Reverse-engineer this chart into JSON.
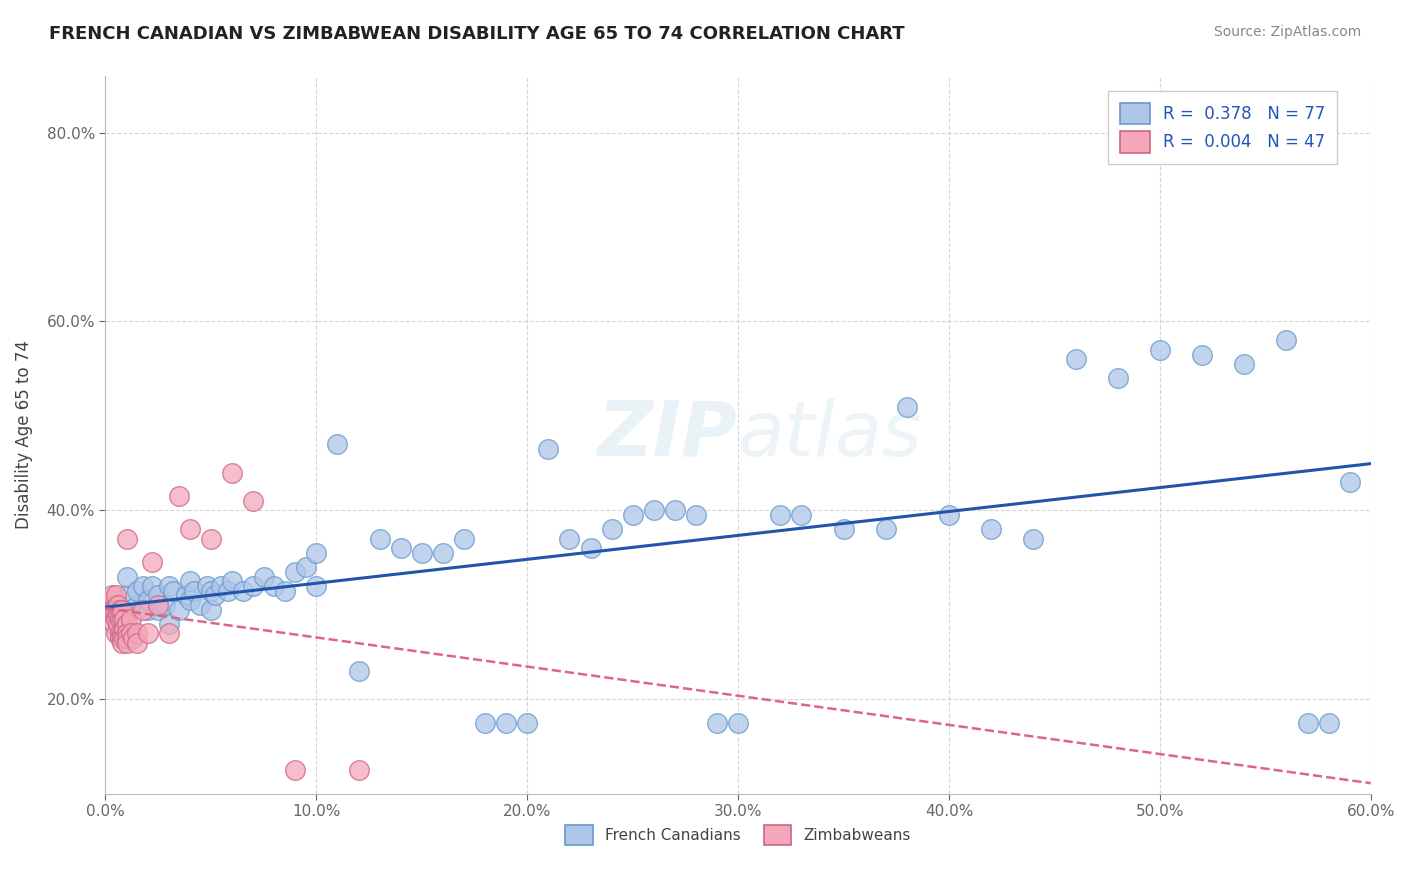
{
  "title": "FRENCH CANADIAN VS ZIMBABWEAN DISABILITY AGE 65 TO 74 CORRELATION CHART",
  "source": "Source: ZipAtlas.com",
  "ylabel": "Disability Age 65 to 74",
  "xlim": [
    0.0,
    0.6
  ],
  "ylim": [
    0.1,
    0.86
  ],
  "xticks": [
    0.0,
    0.1,
    0.2,
    0.3,
    0.4,
    0.5,
    0.6
  ],
  "yticks": [
    0.2,
    0.4,
    0.6,
    0.8
  ],
  "ytick_labels": [
    "20.0%",
    "40.0%",
    "60.0%",
    "80.0%"
  ],
  "xtick_labels": [
    "0.0%",
    "10.0%",
    "20.0%",
    "30.0%",
    "40.0%",
    "50.0%",
    "60.0%"
  ],
  "legend_R1": "0.378",
  "legend_N1": "77",
  "legend_R2": "0.004",
  "legend_N2": "47",
  "legend_label1": "French Canadians",
  "legend_label2": "Zimbabweans",
  "blue_color": "#aec6e8",
  "blue_edge": "#6699cc",
  "pink_color": "#f4a7b9",
  "pink_edge": "#cc6688",
  "trend_blue": "#2255aa",
  "trend_pink": "#dd6688",
  "background": "#ffffff",
  "grid_color": "#cccccc",
  "blue_x": [
    0.005,
    0.008,
    0.01,
    0.01,
    0.01,
    0.012,
    0.015,
    0.015,
    0.018,
    0.02,
    0.02,
    0.022,
    0.025,
    0.025,
    0.028,
    0.03,
    0.03,
    0.032,
    0.035,
    0.038,
    0.04,
    0.04,
    0.042,
    0.045,
    0.048,
    0.05,
    0.05,
    0.052,
    0.055,
    0.058,
    0.06,
    0.065,
    0.07,
    0.075,
    0.08,
    0.085,
    0.09,
    0.095,
    0.1,
    0.1,
    0.11,
    0.12,
    0.13,
    0.14,
    0.15,
    0.16,
    0.17,
    0.18,
    0.19,
    0.2,
    0.21,
    0.22,
    0.23,
    0.24,
    0.25,
    0.26,
    0.27,
    0.28,
    0.29,
    0.3,
    0.32,
    0.33,
    0.35,
    0.37,
    0.38,
    0.4,
    0.42,
    0.44,
    0.46,
    0.48,
    0.5,
    0.52,
    0.54,
    0.56,
    0.57,
    0.58,
    0.59
  ],
  "blue_y": [
    0.3,
    0.285,
    0.29,
    0.31,
    0.33,
    0.27,
    0.3,
    0.315,
    0.32,
    0.295,
    0.305,
    0.32,
    0.295,
    0.31,
    0.3,
    0.28,
    0.32,
    0.315,
    0.295,
    0.31,
    0.305,
    0.325,
    0.315,
    0.3,
    0.32,
    0.295,
    0.315,
    0.31,
    0.32,
    0.315,
    0.325,
    0.315,
    0.32,
    0.33,
    0.32,
    0.315,
    0.335,
    0.34,
    0.32,
    0.355,
    0.47,
    0.23,
    0.37,
    0.36,
    0.355,
    0.355,
    0.37,
    0.175,
    0.175,
    0.175,
    0.465,
    0.37,
    0.36,
    0.38,
    0.395,
    0.4,
    0.4,
    0.395,
    0.175,
    0.175,
    0.395,
    0.395,
    0.38,
    0.38,
    0.51,
    0.395,
    0.38,
    0.37,
    0.56,
    0.54,
    0.57,
    0.565,
    0.555,
    0.58,
    0.175,
    0.175,
    0.43
  ],
  "pink_x": [
    0.003,
    0.003,
    0.003,
    0.004,
    0.004,
    0.005,
    0.005,
    0.005,
    0.005,
    0.005,
    0.006,
    0.006,
    0.006,
    0.007,
    0.007,
    0.007,
    0.007,
    0.008,
    0.008,
    0.008,
    0.008,
    0.008,
    0.009,
    0.009,
    0.009,
    0.01,
    0.01,
    0.01,
    0.01,
    0.01,
    0.012,
    0.012,
    0.013,
    0.015,
    0.015,
    0.018,
    0.02,
    0.022,
    0.025,
    0.03,
    0.035,
    0.04,
    0.05,
    0.06,
    0.07,
    0.09,
    0.12
  ],
  "pink_y": [
    0.295,
    0.305,
    0.31,
    0.28,
    0.295,
    0.3,
    0.31,
    0.285,
    0.295,
    0.27,
    0.28,
    0.29,
    0.3,
    0.285,
    0.295,
    0.27,
    0.265,
    0.285,
    0.295,
    0.27,
    0.265,
    0.26,
    0.285,
    0.275,
    0.265,
    0.37,
    0.28,
    0.27,
    0.265,
    0.26,
    0.285,
    0.27,
    0.265,
    0.27,
    0.26,
    0.295,
    0.27,
    0.345,
    0.3,
    0.27,
    0.415,
    0.38,
    0.37,
    0.44,
    0.41,
    0.125,
    0.125
  ]
}
